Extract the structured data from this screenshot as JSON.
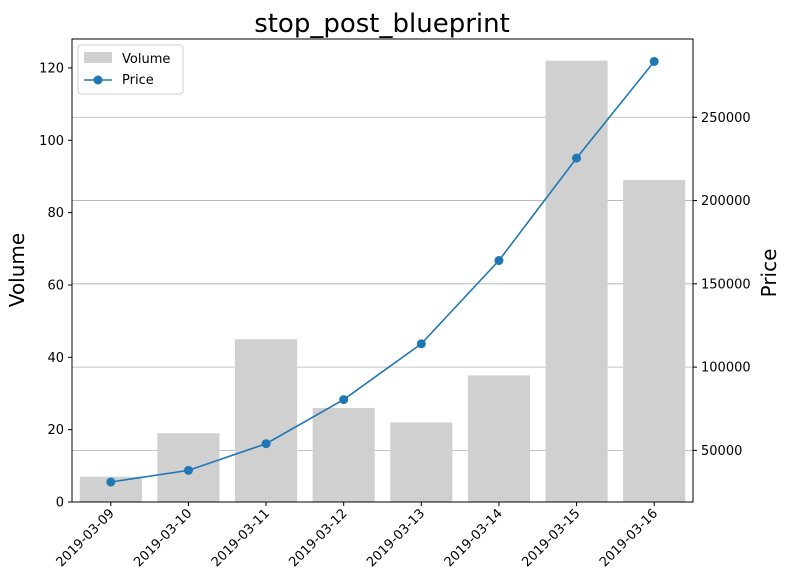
{
  "chart_data": {
    "type": "bar",
    "title": "stop_post_blueprint",
    "categories": [
      "2019-03-09",
      "2019-03-10",
      "2019-03-11",
      "2019-03-12",
      "2019-03-13",
      "2019-03-14",
      "2019-03-15",
      "2019-03-16"
    ],
    "series": [
      {
        "name": "Volume",
        "type": "bar",
        "axis": "left",
        "color": "#d0d0d0",
        "values": [
          7,
          19,
          45,
          26,
          22,
          35,
          122,
          89
        ]
      },
      {
        "name": "Price",
        "type": "line",
        "axis": "right",
        "color": "#1f77b4",
        "values": [
          31000,
          38000,
          54000,
          80500,
          114000,
          164000,
          225500,
          283500
        ]
      }
    ],
    "ylabel": "Volume",
    "y2label": "Price",
    "ylim": [
      0,
      128
    ],
    "y2lim": [
      19000,
      297000
    ],
    "yticks": [
      0,
      20,
      40,
      60,
      80,
      100,
      120
    ],
    "y2ticks": [
      50000,
      100000,
      150000,
      200000,
      250000
    ],
    "grid": "horizontal lines at right-axis ticks",
    "legend": "top-left"
  }
}
